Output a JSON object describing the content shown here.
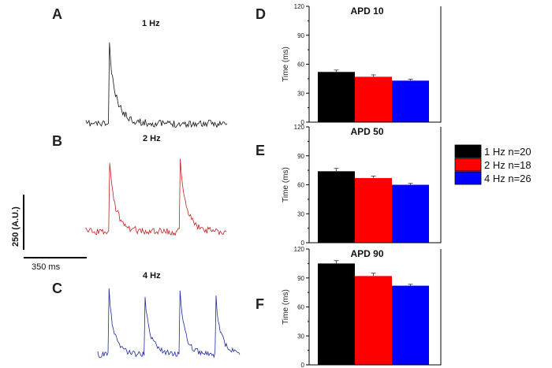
{
  "panels": {
    "A": "A",
    "B": "B",
    "C": "C",
    "D": "D",
    "E": "E",
    "F": "F"
  },
  "colors": {
    "hz1": "#000000",
    "hz2": "#ff0000",
    "hz4": "#0000ff",
    "trace1": "#111111",
    "trace2": "#c42020",
    "trace4": "#1c2a9a"
  },
  "traces": [
    {
      "title": "1 Hz",
      "frequency_hz": 1
    },
    {
      "title": "2 Hz",
      "frequency_hz": 2
    },
    {
      "title": "4 Hz",
      "frequency_hz": 4
    }
  ],
  "scale_bar": {
    "vertical_label": "250 (A.U.)",
    "horizontal_label": "350 ms"
  },
  "legend": [
    {
      "label": "1 Hz n=20",
      "color": "#000000"
    },
    {
      "label": "2 Hz n=18",
      "color": "#ff0000"
    },
    {
      "label": "4 Hz n=26",
      "color": "#0000ff"
    }
  ],
  "chart_data": [
    {
      "type": "bar",
      "title": "APD 10",
      "ylabel": "Time (ms)",
      "ylim": [
        0,
        120
      ],
      "yticks": [
        "0",
        "30",
        "60",
        "90",
        "120"
      ],
      "categories": [
        "1 Hz n=20",
        "2 Hz n=18",
        "4 Hz n=26"
      ],
      "values": [
        52,
        47,
        43
      ],
      "errors": [
        2,
        2,
        1.5
      ]
    },
    {
      "type": "bar",
      "title": "APD 50",
      "ylabel": "Time (ms)",
      "ylim": [
        0,
        120
      ],
      "yticks": [
        "0",
        "30",
        "60",
        "90",
        "120"
      ],
      "categories": [
        "1 Hz n=20",
        "2 Hz n=18",
        "4 Hz n=26"
      ],
      "values": [
        74,
        67,
        60
      ],
      "errors": [
        3,
        2,
        1.5
      ]
    },
    {
      "type": "bar",
      "title": "APD 90",
      "ylabel": "Time (ms)",
      "ylim": [
        0,
        120
      ],
      "yticks": [
        "0",
        "30",
        "60",
        "90",
        "120"
      ],
      "categories": [
        "1 Hz n=20",
        "2 Hz n=18",
        "4 Hz n=26"
      ],
      "values": [
        105,
        92,
        82
      ],
      "errors": [
        3,
        3,
        1.5
      ]
    }
  ]
}
